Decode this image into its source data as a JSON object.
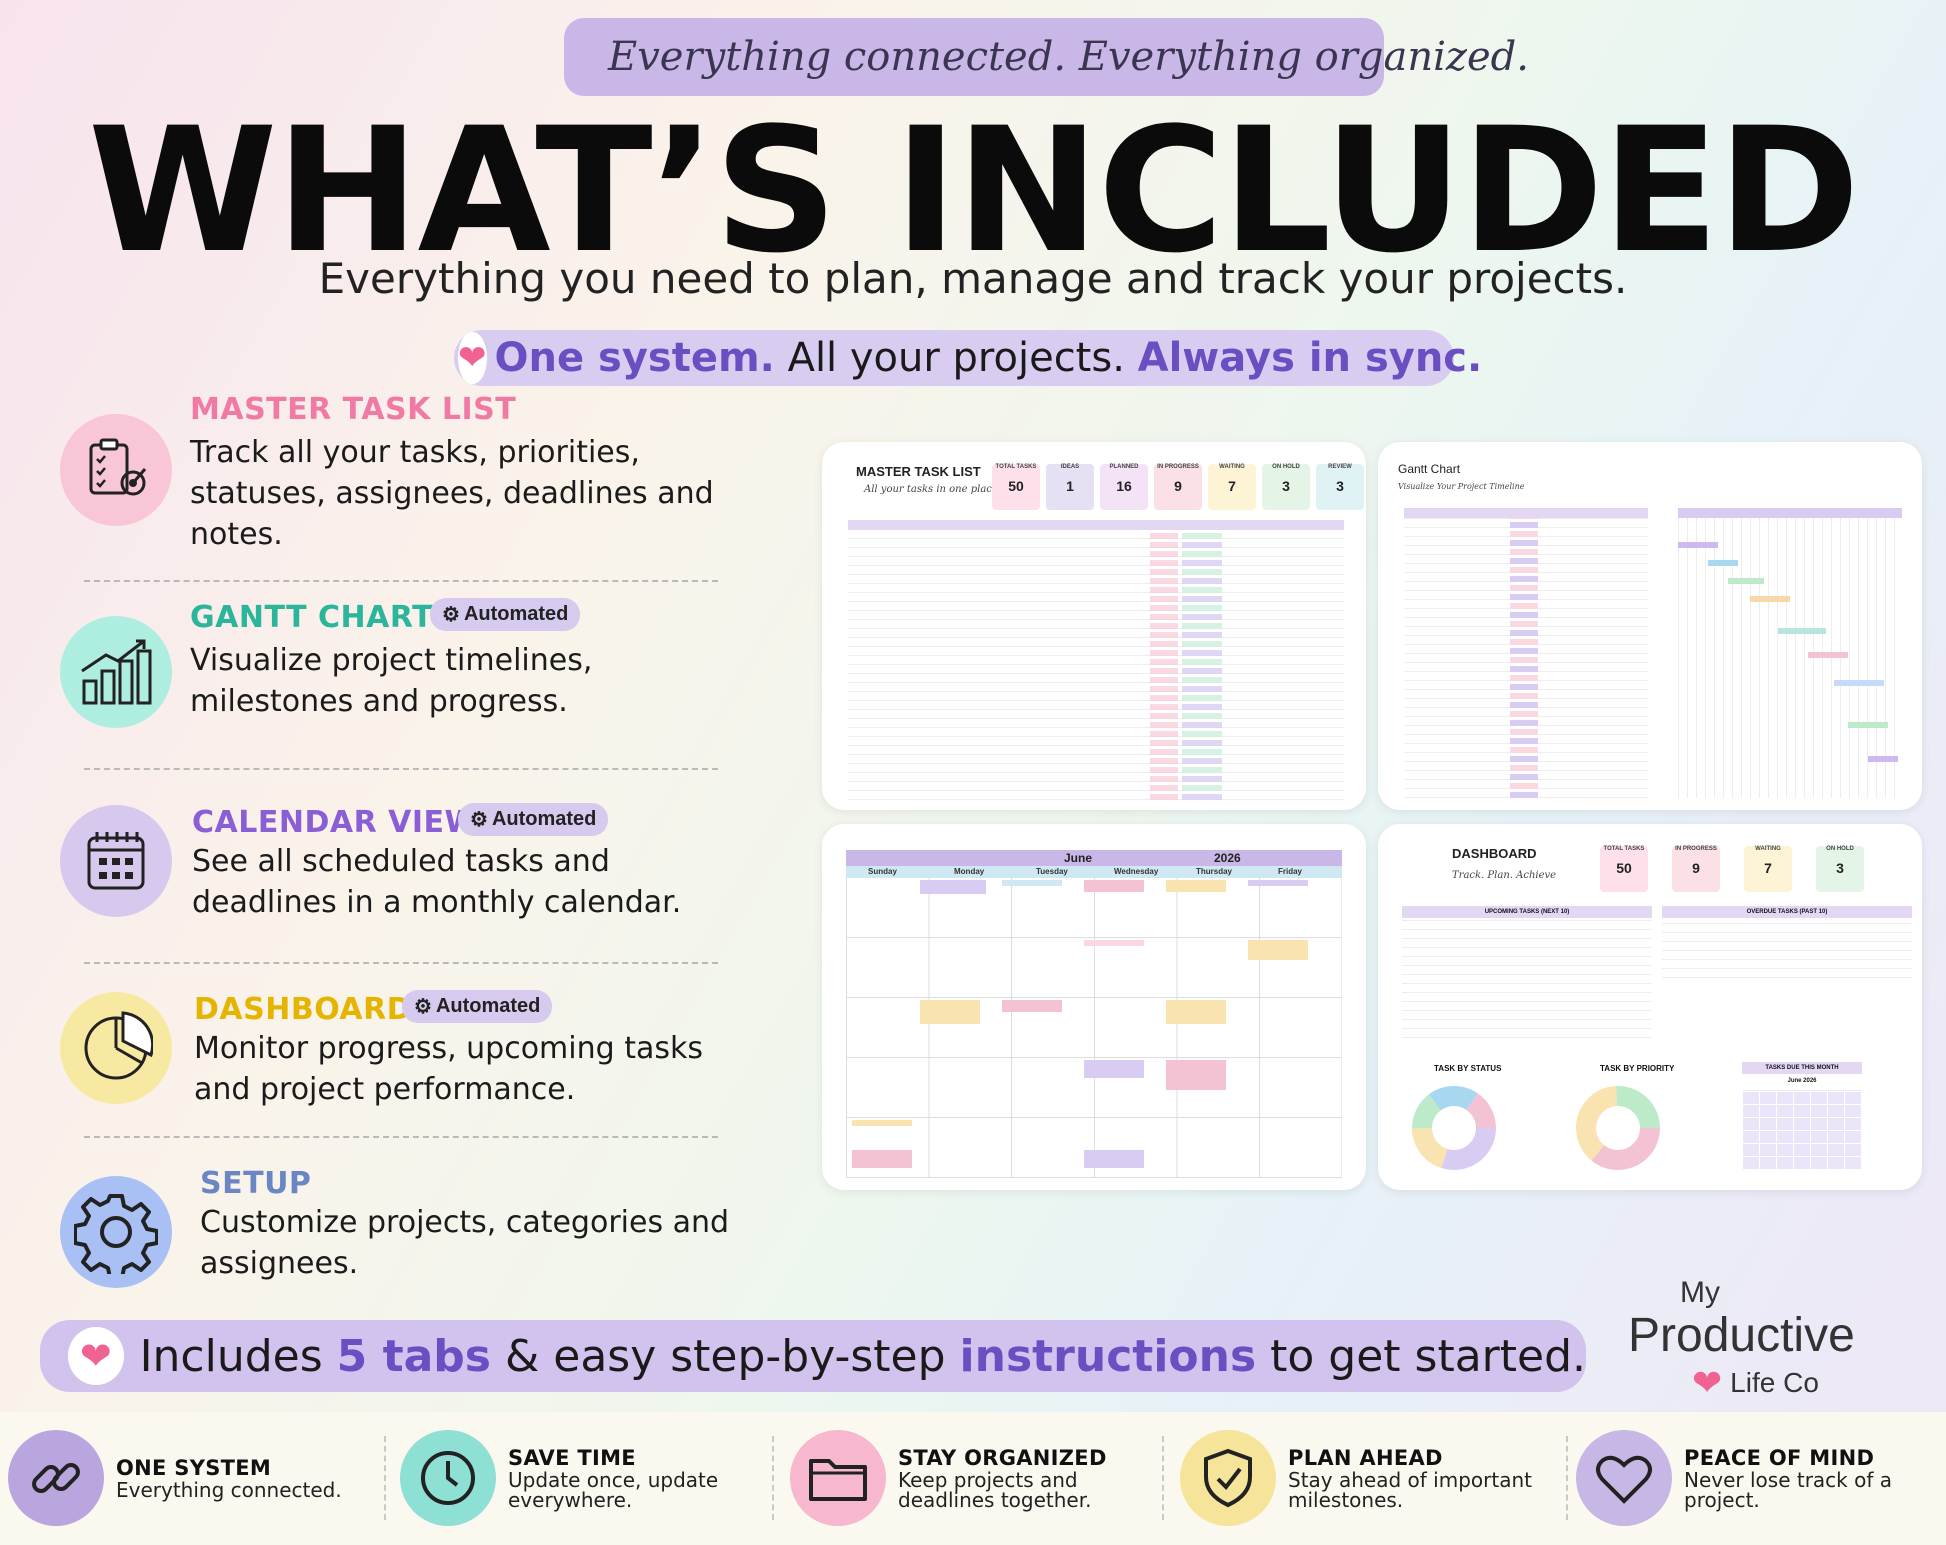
{
  "header": {
    "tagline": "Everything connected. Everything organized.",
    "title": "WHAT’S INCLUDED",
    "subtitle": "Everything you need to plan, manage and track your projects.",
    "sync": {
      "part1": "One system.",
      "part2": " All your projects. ",
      "part3": "Always in sync."
    }
  },
  "features": [
    {
      "title": "MASTER TASK LIST",
      "badge": "",
      "desc": "Track all your tasks, priorities, statuses, assignees, deadlines and notes.",
      "color": "#f07aa4",
      "icon": "clipboard-target-icon"
    },
    {
      "title": "GANTT CHART",
      "badge": "Automated",
      "desc": "Visualize project timelines, milestones and progress.",
      "color": "#2bb59a",
      "icon": "growth-chart-icon"
    },
    {
      "title": "CALENDAR VIEW",
      "badge": "Automated",
      "desc": "See all scheduled tasks and deadlines in a monthly calendar.",
      "color": "#8a5fd6",
      "icon": "calendar-icon"
    },
    {
      "title": "DASHBOARD",
      "badge": "Automated",
      "desc": "Monitor progress, upcoming tasks and project performance.",
      "color": "#e6b400",
      "icon": "pie-chart-icon"
    },
    {
      "title": "SETUP",
      "badge": "",
      "desc": "Customize projects, categories and assignees.",
      "color": "#6b86c4",
      "icon": "gear-icon"
    }
  ],
  "screenshots": {
    "task_list": {
      "title": "MASTER TASK LIST",
      "sub": "All your tasks in one place",
      "stats": [
        {
          "label": "TOTAL TASKS",
          "value": "50"
        },
        {
          "label": "IDEAS",
          "value": "1"
        },
        {
          "label": "PLANNED",
          "value": "16"
        },
        {
          "label": "IN PROGRESS",
          "value": "9"
        },
        {
          "label": "WAITING",
          "value": "7"
        },
        {
          "label": "ON HOLD",
          "value": "3"
        },
        {
          "label": "REVIEW",
          "value": "3"
        }
      ]
    },
    "gantt": {
      "title": "Gantt Chart",
      "sub": "Visualize Your Project Timeline"
    },
    "calendar": {
      "month": "June",
      "year": "2026",
      "days": [
        "Sunday",
        "Monday",
        "Tuesday",
        "Wednesday",
        "Thursday",
        "Friday"
      ]
    },
    "dashboard": {
      "title": "DASHBOARD",
      "sub": "Track. Plan. Achieve",
      "stats": [
        {
          "label": "TOTAL TASKS",
          "value": "50"
        },
        {
          "label": "IN PROGRESS",
          "value": "9"
        },
        {
          "label": "WAITING",
          "value": "7"
        },
        {
          "label": "ON HOLD",
          "value": "3"
        }
      ],
      "upcoming_title": "UPCOMING TASKS (NEXT 10)",
      "overdue_title": "OVERDUE TASKS (PAST 10)",
      "status_title": "TASK BY STATUS",
      "priority_title": "TASK BY PRIORITY",
      "due_title": "TASKS DUE THIS MONTH",
      "due_month": "June 2026"
    }
  },
  "bottom": {
    "part1": "Includes ",
    "part2": "5 tabs",
    "part3": " & easy step-by-step ",
    "part4": "instructions",
    "part5": " to get started."
  },
  "logo": {
    "line1": "My",
    "line2": "Productive",
    "line3": "Life Co"
  },
  "benefits": [
    {
      "title": "ONE SYSTEM",
      "desc": "Everything connected.",
      "color": "#b9a6df",
      "icon": "link-icon"
    },
    {
      "title": "SAVE TIME",
      "desc": "Update once, update everywhere.",
      "color": "#8fe0d4",
      "icon": "clock-icon"
    },
    {
      "title": "STAY ORGANIZED",
      "desc": "Keep projects and deadlines together.",
      "color": "#f7b8cf",
      "icon": "folder-icon"
    },
    {
      "title": "PLAN AHEAD",
      "desc": "Stay ahead of important milestones.",
      "color": "#f6e49a",
      "icon": "shield-check-icon"
    },
    {
      "title": "PEACE OF MIND",
      "desc": "Never lose track of a project.",
      "color": "#c7b7e4",
      "icon": "heart-icon"
    }
  ]
}
